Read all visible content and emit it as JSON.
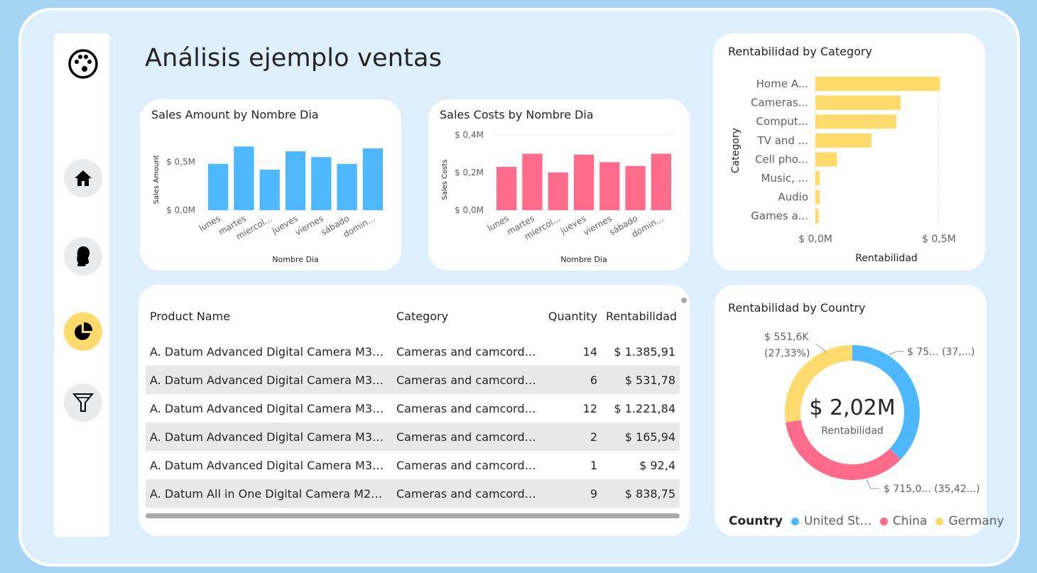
{
  "page": {
    "title": "Análisis ejemplo ventas"
  },
  "nav": {
    "logo": "palette-icon",
    "items": [
      {
        "icon": "home-icon"
      },
      {
        "icon": "person-icon"
      },
      {
        "icon": "pie-chart-icon",
        "active": true
      },
      {
        "icon": "filter-icon"
      }
    ]
  },
  "colors": {
    "blue": "#4db8ff",
    "pink": "#ff6b8b",
    "yellow": "#ffdb6e"
  },
  "sales_amount": {
    "title": "Sales Amount by Nombre Dia",
    "xlabel": "Nombre Dia",
    "ylabel": "Sales Amount",
    "ticks": [
      "$ 0,0M",
      "$ 0,5M"
    ],
    "tick_labels_x": [
      "lunes",
      "martes",
      "miercol...",
      "jueves",
      "viernes",
      "sábado",
      "domin..."
    ]
  },
  "sales_costs": {
    "title": "Sales Costs by Nombre Dia",
    "xlabel": "Nombre Dia",
    "ylabel": "Sales Costs",
    "ticks": [
      "$ 0,0M",
      "$ 0,2M",
      "$ 0,4M"
    ],
    "tick_labels_x": [
      "lunes",
      "martes",
      "miercol...",
      "jueves",
      "viernes",
      "sábado",
      "domin..."
    ]
  },
  "rent_category": {
    "title": "Rentabilidad by Category",
    "xlabel": "Rentabilidad",
    "ylabel": "Category",
    "ticks": [
      "$ 0,0M",
      "$ 0,5M"
    ],
    "labels": [
      "Home A...",
      "Cameras...",
      "Comput...",
      "TV and ...",
      "Cell pho...",
      "Music, ...",
      "Audio",
      "Games a..."
    ]
  },
  "rent_country": {
    "title": "Rentabilidad by Country",
    "center_value": "$ 2,02M",
    "center_label": "Rentabilidad",
    "label_germany_1": "$ 551,6K",
    "label_germany_2": "(27,33%)",
    "label_us": "$ 75... (37,...)",
    "label_china": "$ 715,0... (35,42...)",
    "legend_title": "Country",
    "legend": [
      "United St...",
      "China",
      "Germany"
    ]
  },
  "table": {
    "headers": [
      "Product Name",
      "Category",
      "Quantity",
      "Rentabilidad"
    ],
    "rows": [
      [
        "A. Datum Advanced Digital Camera M30...",
        "Cameras and camcorders",
        "14",
        "$ 1.385,91"
      ],
      [
        "A. Datum Advanced Digital Camera M30...",
        "Cameras and camcorders",
        "6",
        "$ 531,78"
      ],
      [
        "A. Datum Advanced Digital Camera M30...",
        "Cameras and camcorders",
        "12",
        "$ 1.221,84"
      ],
      [
        "A. Datum Advanced Digital Camera M30...",
        "Cameras and camcorders",
        "2",
        "$ 165,94"
      ],
      [
        "A. Datum Advanced Digital Camera M30...",
        "Cameras and camcorders",
        "1",
        "$ 92,4"
      ],
      [
        "A. Datum All in One Digital Camera M20...",
        "Cameras and camcorders",
        "9",
        "$ 838,75"
      ]
    ]
  },
  "chart_data": [
    {
      "type": "bar",
      "title": "Sales Amount by Nombre Dia",
      "xlabel": "Nombre Dia",
      "ylabel": "Sales Amount",
      "categories": [
        "lunes",
        "martes",
        "miercol...",
        "jueves",
        "viernes",
        "sábado",
        "domin..."
      ],
      "values": [
        0.48,
        0.66,
        0.42,
        0.61,
        0.55,
        0.48,
        0.64
      ],
      "ylim": [
        0,
        0.78
      ],
      "unit": "M",
      "grid": true
    },
    {
      "type": "bar",
      "title": "Sales Costs by Nombre Dia",
      "xlabel": "Nombre Dia",
      "ylabel": "Sales Costs",
      "categories": [
        "lunes",
        "martes",
        "miercol...",
        "jueves",
        "viernes",
        "sábado",
        "domin..."
      ],
      "values": [
        0.23,
        0.3,
        0.2,
        0.295,
        0.255,
        0.235,
        0.3
      ],
      "ylim": [
        0,
        0.4
      ],
      "unit": "M",
      "grid": true
    },
    {
      "type": "bar",
      "orientation": "horizontal",
      "title": "Rentabilidad by Category",
      "xlabel": "Rentabilidad",
      "ylabel": "Category",
      "categories": [
        "Home A...",
        "Cameras...",
        "Comput...",
        "TV and ...",
        "Cell pho...",
        "Music, ...",
        "Audio",
        "Games a..."
      ],
      "values": [
        0.505,
        0.345,
        0.328,
        0.227,
        0.088,
        0.018,
        0.017,
        0.013
      ],
      "xlim": [
        0,
        0.65
      ],
      "unit": "M",
      "grid": true
    },
    {
      "type": "pie",
      "donut": true,
      "title": "Rentabilidad by Country",
      "categories": [
        "United St...",
        "China",
        "Germany"
      ],
      "values": [
        37.25,
        35.42,
        27.33
      ],
      "total": "$ 2,02M",
      "legend_position": "bottom"
    }
  ]
}
